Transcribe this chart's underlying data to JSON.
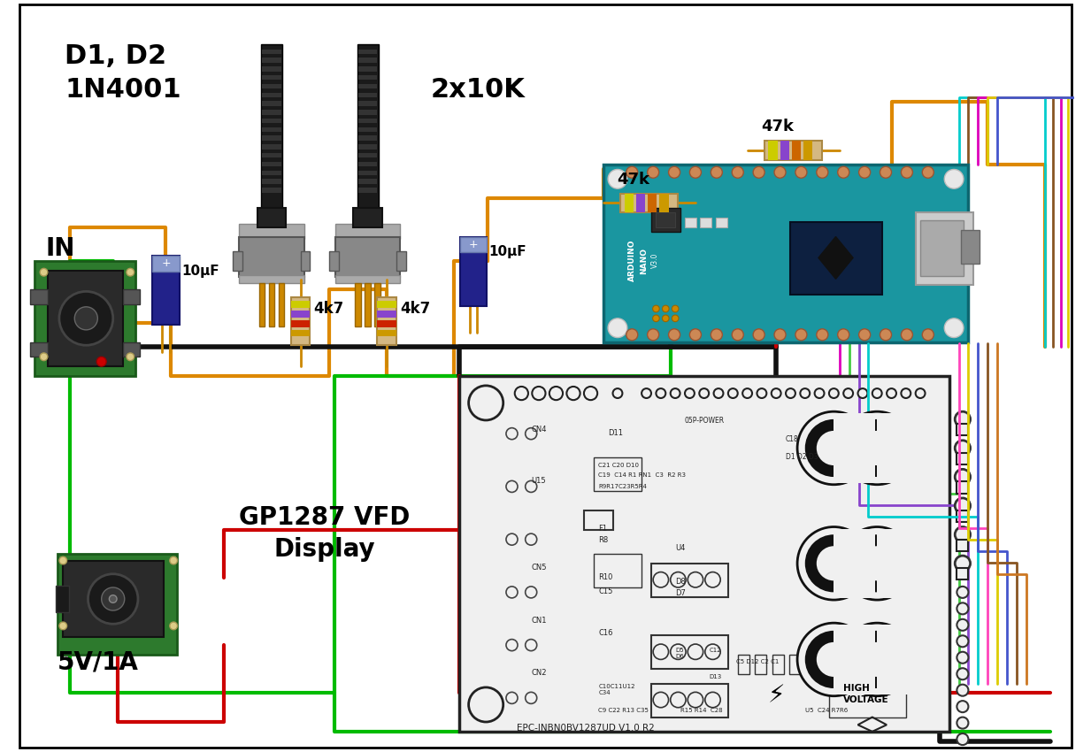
{
  "bg_color": "#ffffff",
  "fig_width": 12.33,
  "fig_height": 8.5,
  "labels": {
    "d1d2": "D1, D2",
    "1n4001": "1N4001",
    "2x10k": "2x10K",
    "in": "IN",
    "10uf1": "10μF",
    "10uf2": "10μF",
    "4k7_1": "4k7",
    "4k7_2": "4k7",
    "47k_1": "47k",
    "47k_2": "47k",
    "5v1a": "5V/1A",
    "gp1287_line1": "GP1287 VFD",
    "gp1287_line2": "Display"
  },
  "colors": {
    "green": "#00bb00",
    "orange": "#dd8800",
    "black": "#111111",
    "red": "#cc0000",
    "white": "#ffffff",
    "pcb_green": "#2d7a2d",
    "arduino_teal": "#1e96a0",
    "cap_blue": "#22228a",
    "resistor_tan": "#d4a84b",
    "wire_cyan": "#00cccc",
    "wire_magenta": "#dd00bb",
    "wire_yellow": "#ddcc00",
    "wire_blue": "#4455cc",
    "wire_brown": "#885522",
    "wire_pink": "#ff44bb",
    "wire_orange_brown": "#cc7722",
    "wire_purple": "#8844cc",
    "wire_lime": "#44cc44"
  }
}
